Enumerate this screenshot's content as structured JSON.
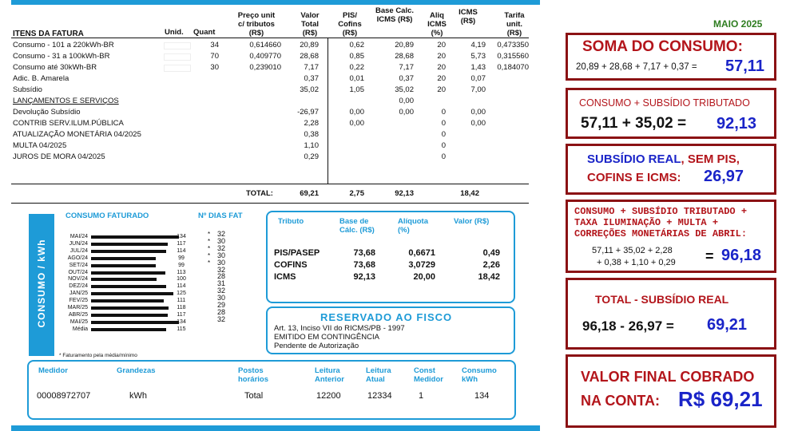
{
  "bill": {
    "headers": {
      "items": "ITENS DA FATURA",
      "unid": "Unid.",
      "quant": "Quant",
      "price": "Preço unit\nc/ tributos\n(R$)",
      "total": "Valor\nTotal\n(R$)",
      "pis": "PIS/\nCofins\n(R$)",
      "base": "Base Calc.\nICMS (R$)",
      "aliq": "Aliq\nICMS\n(%)",
      "icms": "ICMS\n(R$)",
      "tarifa": "Tarifa\nunit.\n(R$)"
    },
    "rows": [
      {
        "item": "Consumo - 101 a 220kWh-BR",
        "quant": "34",
        "price": "0,614660",
        "total": "20,89",
        "pis": "0,62",
        "base": "20,89",
        "aliq": "20",
        "icms": "4,19",
        "tarifa": "0,473350"
      },
      {
        "item": "Consumo - 31 a 100kWh-BR",
        "quant": "70",
        "price": "0,409770",
        "total": "28,68",
        "pis": "0,85",
        "base": "28,68",
        "aliq": "20",
        "icms": "5,73",
        "tarifa": "0,315560"
      },
      {
        "item": "Consumo até 30kWh-BR",
        "quant": "30",
        "price": "0,239010",
        "total": "7,17",
        "pis": "0,22",
        "base": "7,17",
        "aliq": "20",
        "icms": "1,43",
        "tarifa": "0,184070"
      },
      {
        "item": "Adic. B. Amarela",
        "quant": "",
        "price": "",
        "total": "0,37",
        "pis": "0,01",
        "base": "0,37",
        "aliq": "20",
        "icms": "0,07",
        "tarifa": ""
      },
      {
        "item": "Subsídio",
        "quant": "",
        "price": "",
        "total": "35,02",
        "pis": "1,05",
        "base": "35,02",
        "aliq": "20",
        "icms": "7,00",
        "tarifa": ""
      },
      {
        "item": "LANÇAMENTOS E SERVIÇOS",
        "quant": "",
        "price": "",
        "total": "",
        "pis": "",
        "base": "0,00",
        "aliq": "",
        "icms": "",
        "tarifa": "",
        "underline": true
      },
      {
        "item": "Devolução Subsídio",
        "quant": "",
        "price": "",
        "total": "-26,97",
        "pis": "0,00",
        "base": "0,00",
        "aliq": "0",
        "icms": "0,00",
        "tarifa": ""
      },
      {
        "item": "CONTRIB SERV.ILUM.PÚBLICA",
        "quant": "",
        "price": "",
        "total": "2,28",
        "pis": "0,00",
        "base": "",
        "aliq": "0",
        "icms": "0,00",
        "tarifa": ""
      },
      {
        "item": "ATUALIZAÇÃO MONETÁRIA 04/2025",
        "quant": "",
        "price": "",
        "total": "0,38",
        "pis": "",
        "base": "",
        "aliq": "0",
        "icms": "",
        "tarifa": ""
      },
      {
        "item": "MULTA 04/2025",
        "quant": "",
        "price": "",
        "total": "1,10",
        "pis": "",
        "base": "",
        "aliq": "0",
        "icms": "",
        "tarifa": ""
      },
      {
        "item": "JUROS DE MORA 04/2025",
        "quant": "",
        "price": "",
        "total": "0,29",
        "pis": "",
        "base": "",
        "aliq": "0",
        "icms": "",
        "tarifa": ""
      }
    ],
    "totals": {
      "label": "TOTAL:",
      "total": "69,21",
      "pis": "2,75",
      "base": "92,13",
      "icms": "18,42"
    },
    "consumo": {
      "title": "CONSUMO FATURADO",
      "days_title": "Nº DIAS FAT",
      "side_label": "CONSUMO / kWh",
      "note": "* Faturamento pela média/mínimo",
      "months": [
        {
          "m": "MAI/24",
          "kwh": 134,
          "star": "*",
          "days": "32"
        },
        {
          "m": "JUN/24",
          "kwh": 117,
          "star": "*",
          "days": "30"
        },
        {
          "m": "JUL/24",
          "kwh": 114,
          "star": "*",
          "days": "32"
        },
        {
          "m": "AGO/24",
          "kwh": 99,
          "star": "*",
          "days": "30"
        },
        {
          "m": "SET/24",
          "kwh": 99,
          "star": "*",
          "days": "30"
        },
        {
          "m": "OUT/24",
          "kwh": 113,
          "star": "",
          "days": "32"
        },
        {
          "m": "NOV/24",
          "kwh": 100,
          "star": "",
          "days": "28"
        },
        {
          "m": "DEZ/24",
          "kwh": 114,
          "star": "",
          "days": "31"
        },
        {
          "m": "JAN/25",
          "kwh": 125,
          "star": "",
          "days": "32"
        },
        {
          "m": "FEV/25",
          "kwh": 111,
          "star": "",
          "days": "30"
        },
        {
          "m": "MAR/25",
          "kwh": 118,
          "star": "",
          "days": "29"
        },
        {
          "m": "ABR/25",
          "kwh": 117,
          "star": "",
          "days": "28"
        },
        {
          "m": "MAI/25",
          "kwh": 134,
          "star": "",
          "days": "32"
        },
        {
          "m": "Média",
          "kwh": 115,
          "star": "",
          "days": ""
        }
      ]
    },
    "tributos": {
      "headers": {
        "tributo": "Tributo",
        "base": "Base de\nCálc. (R$)",
        "aliq": "Alíquota\n(%)",
        "valor": "Valor (R$)"
      },
      "rows": [
        {
          "name": "PIS/PASEP",
          "base": "73,68",
          "aliq": "0,6671",
          "valor": "0,49"
        },
        {
          "name": "COFINS",
          "base": "73,68",
          "aliq": "3,0729",
          "valor": "2,26"
        },
        {
          "name": "ICMS",
          "base": "92,13",
          "aliq": "20,00",
          "valor": "18,42"
        }
      ]
    },
    "fisco": {
      "title": "RESERVADO AO FISCO",
      "lines": [
        "Art. 13, Inciso VII do RICMS/PB - 1997",
        "EMITIDO EM CONTINGÊNCIA",
        "Pendente de Autorização"
      ]
    },
    "medidor": {
      "headers": {
        "medidor": "Medidor",
        "grandezas": "Grandezas",
        "postos": "Postos\nhorários",
        "anterior": "Leitura\nAnterior",
        "atual": "Leitura\nAtual",
        "const": "Const\nMedidor",
        "consumo": "Consumo\nkWh"
      },
      "row": {
        "medidor": "00008972707",
        "grandezas": "kWh",
        "postos": "Total",
        "anterior": "12200",
        "atual": "12334",
        "const": "1",
        "consumo": "134"
      }
    }
  },
  "analysis": {
    "month": "MAIO 2025",
    "p1": {
      "title": "SOMA DO CONSUMO:",
      "expr": "20,89 + 28,68 + 7,17 + 0,37  =",
      "result": "57,11"
    },
    "p2": {
      "title": "CONSUMO + SUBSÍDIO TRIBUTADO",
      "expr": "57,11 + 35,02   =",
      "result": "92,13"
    },
    "p3": {
      "line1": "SUBSÍDIO REAL",
      "line1b": ", SEM PIS,",
      "line2": "COFINS E ICMS:",
      "result": "26,97"
    },
    "p4": {
      "title1": "CONSUMO + SUBSÍDIO TRIBUTADO +",
      "title2": "TAXA ILUMINAÇÃO + MULTA +",
      "title3": "CORREÇÕES MONETÁRIAS DE ABRIL:",
      "expr1": "57,11 + 35,02 + 2,28",
      "expr2": "+ 0,38 + 1,10 + 0,29",
      "eq": "=",
      "result": "96,18"
    },
    "p5": {
      "title": "TOTAL  -  SUBSÍDIO REAL",
      "expr": "96,18 - 26,97 =",
      "result": "69,21"
    },
    "p6": {
      "line1": "VALOR FINAL COBRADO",
      "line2": "NA CONTA:",
      "result": "R$ 69,21"
    },
    "colors": {
      "panel_border": "#8b1214",
      "title_red": "#b3151b",
      "result_blue": "#1a24c8",
      "bill_blue": "#1e9bd7",
      "month_green": "#2e7d1f"
    }
  }
}
